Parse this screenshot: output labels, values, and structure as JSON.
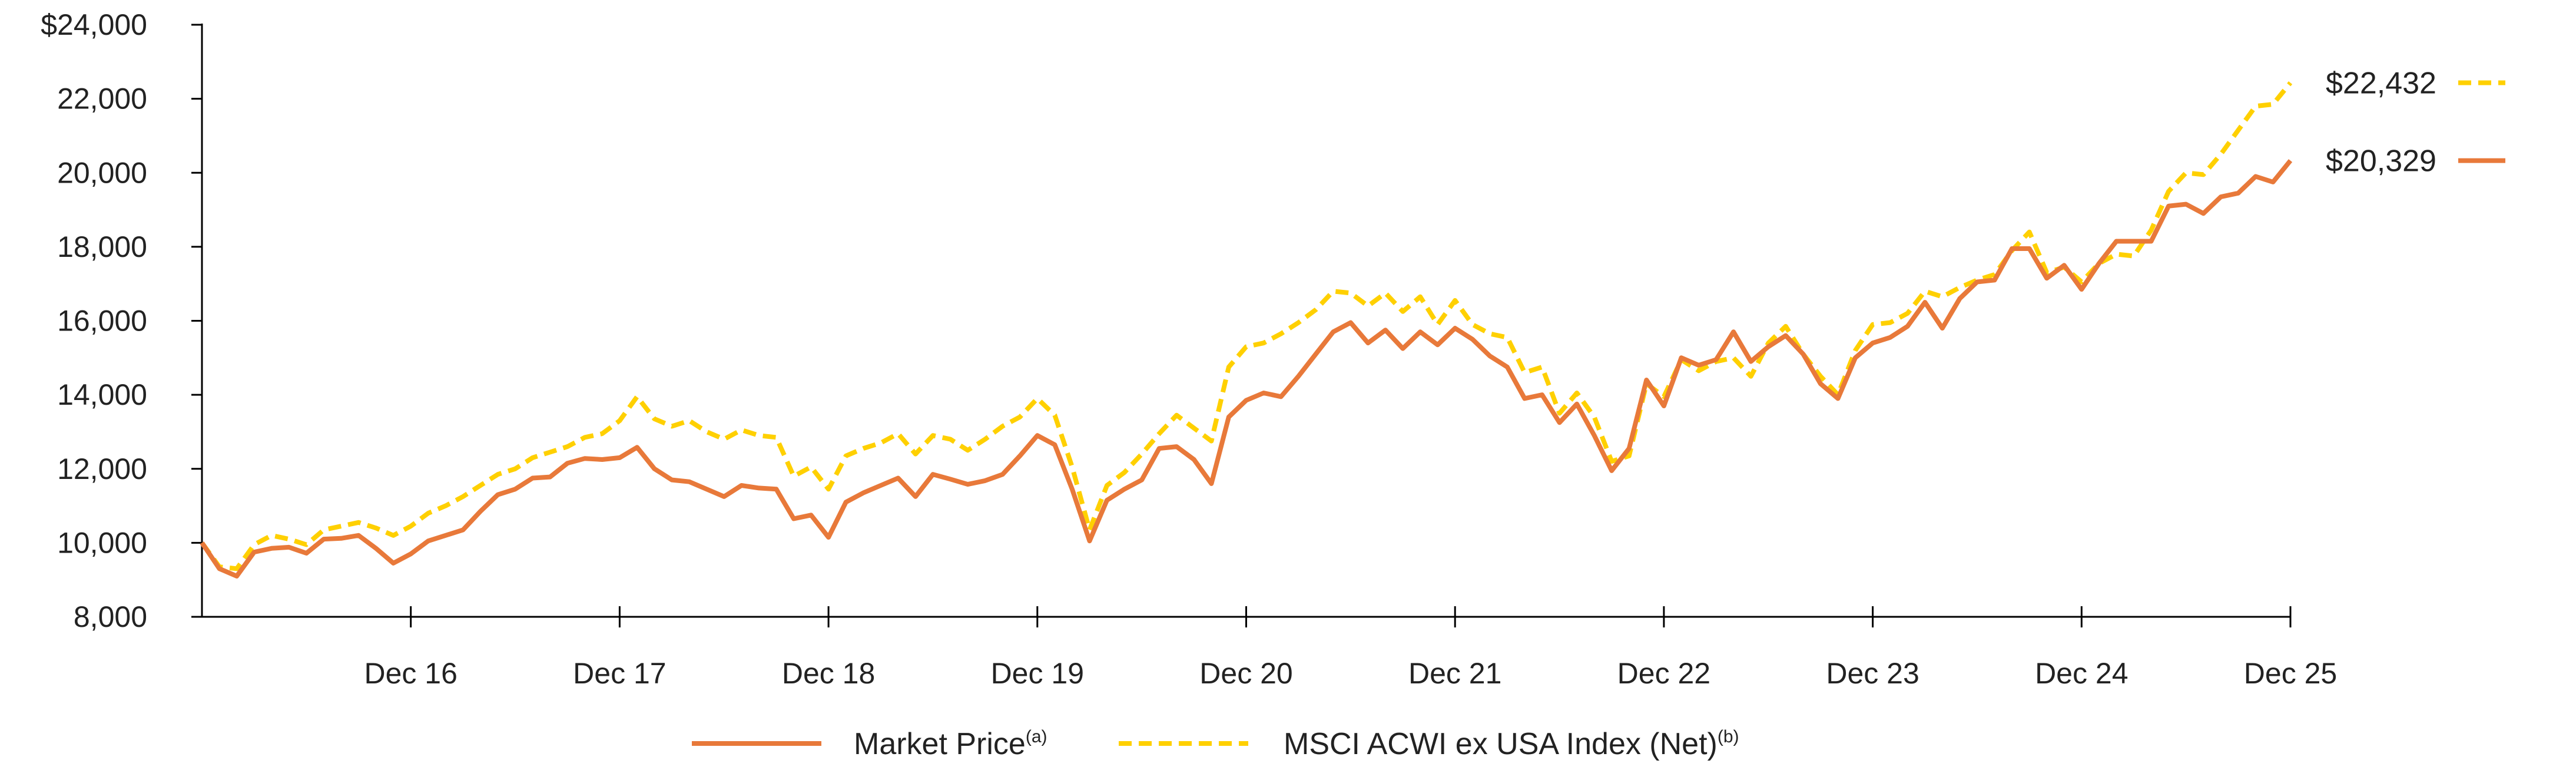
{
  "chart_data": {
    "type": "line",
    "title": "",
    "xlabel": "",
    "ylabel": "",
    "ylim": [
      8000,
      24000
    ],
    "y_ticks": [
      8000,
      10000,
      12000,
      14000,
      16000,
      18000,
      20000,
      22000,
      24000
    ],
    "y_tick_labels": [
      "8,000",
      "10,000",
      "12,000",
      "14,000",
      "16,000",
      "18,000",
      "20,000",
      "22,000",
      "$24,000"
    ],
    "x_range_months": [
      0,
      120
    ],
    "x_ticks": [
      {
        "month": 12,
        "label": "Dec 16"
      },
      {
        "month": 24,
        "label": "Dec 17"
      },
      {
        "month": 36,
        "label": "Dec 18"
      },
      {
        "month": 48,
        "label": "Dec 19"
      },
      {
        "month": 60,
        "label": "Dec 20"
      },
      {
        "month": 72,
        "label": "Dec 21"
      },
      {
        "month": 84,
        "label": "Dec 22"
      },
      {
        "month": 96,
        "label": "Dec 23"
      },
      {
        "month": 108,
        "label": "Dec 24"
      },
      {
        "month": 120,
        "label": "Dec 25"
      }
    ],
    "grid": false,
    "legend_position": "bottom",
    "series": [
      {
        "name": "Market Price",
        "superscript": "(a)",
        "color": "#E8793A",
        "style": "solid",
        "end_label": "$20,329",
        "points": [
          [
            0,
            10000
          ],
          [
            1,
            9300
          ],
          [
            2,
            9100
          ],
          [
            3,
            9750
          ],
          [
            4,
            9850
          ],
          [
            5,
            9880
          ],
          [
            6,
            9720
          ],
          [
            7,
            10100
          ],
          [
            8,
            10120
          ],
          [
            9,
            10200
          ],
          [
            10,
            9850
          ],
          [
            11,
            9450
          ],
          [
            12,
            9700
          ],
          [
            13,
            10050
          ],
          [
            14,
            10200
          ],
          [
            15,
            10350
          ],
          [
            16,
            10850
          ],
          [
            17,
            11300
          ],
          [
            18,
            11450
          ],
          [
            19,
            11750
          ],
          [
            20,
            11780
          ],
          [
            21,
            12150
          ],
          [
            22,
            12280
          ],
          [
            23,
            12250
          ],
          [
            24,
            12300
          ],
          [
            25,
            12580
          ],
          [
            26,
            12000
          ],
          [
            27,
            11700
          ],
          [
            28,
            11650
          ],
          [
            29,
            11450
          ],
          [
            30,
            11250
          ],
          [
            31,
            11550
          ],
          [
            32,
            11480
          ],
          [
            33,
            11450
          ],
          [
            34,
            10650
          ],
          [
            35,
            10750
          ],
          [
            36,
            10150
          ],
          [
            37,
            11100
          ],
          [
            38,
            11350
          ],
          [
            39,
            11550
          ],
          [
            40,
            11750
          ],
          [
            41,
            11250
          ],
          [
            42,
            11850
          ],
          [
            43,
            11720
          ],
          [
            44,
            11580
          ],
          [
            45,
            11680
          ],
          [
            46,
            11850
          ],
          [
            47,
            12350
          ],
          [
            48,
            12900
          ],
          [
            49,
            12650
          ],
          [
            50,
            11450
          ],
          [
            51,
            10050
          ],
          [
            52,
            11150
          ],
          [
            53,
            11450
          ],
          [
            54,
            11700
          ],
          [
            55,
            12550
          ],
          [
            56,
            12600
          ],
          [
            57,
            12250
          ],
          [
            58,
            11600
          ],
          [
            59,
            13400
          ],
          [
            60,
            13850
          ],
          [
            61,
            14050
          ],
          [
            62,
            13950
          ],
          [
            63,
            14500
          ],
          [
            64,
            15100
          ],
          [
            65,
            15700
          ],
          [
            66,
            15950
          ],
          [
            67,
            15400
          ],
          [
            68,
            15750
          ],
          [
            69,
            15250
          ],
          [
            70,
            15700
          ],
          [
            71,
            15350
          ],
          [
            72,
            15800
          ],
          [
            73,
            15500
          ],
          [
            74,
            15050
          ],
          [
            75,
            14750
          ],
          [
            76,
            13900
          ],
          [
            77,
            14000
          ],
          [
            78,
            13250
          ],
          [
            79,
            13750
          ],
          [
            80,
            12900
          ],
          [
            81,
            11950
          ],
          [
            82,
            12550
          ],
          [
            83,
            14400
          ],
          [
            84,
            13700
          ],
          [
            85,
            15000
          ],
          [
            86,
            14800
          ],
          [
            87,
            14950
          ],
          [
            88,
            15700
          ],
          [
            89,
            14900
          ],
          [
            90,
            15300
          ],
          [
            91,
            15600
          ],
          [
            92,
            15100
          ],
          [
            93,
            14300
          ],
          [
            94,
            13900
          ],
          [
            95,
            15000
          ],
          [
            96,
            15400
          ],
          [
            97,
            15550
          ],
          [
            98,
            15850
          ],
          [
            99,
            16500
          ],
          [
            100,
            15800
          ],
          [
            101,
            16600
          ],
          [
            102,
            17050
          ],
          [
            103,
            17100
          ],
          [
            104,
            17950
          ],
          [
            105,
            17950
          ],
          [
            106,
            17150
          ],
          [
            107,
            17500
          ],
          [
            108,
            16850
          ],
          [
            109,
            17550
          ],
          [
            110,
            18150
          ],
          [
            111,
            18150
          ],
          [
            112,
            18150
          ],
          [
            113,
            19100
          ],
          [
            114,
            19150
          ],
          [
            115,
            18900
          ],
          [
            116,
            19350
          ],
          [
            117,
            19450
          ],
          [
            118,
            19900
          ],
          [
            119,
            19750
          ],
          [
            120,
            20329
          ]
        ]
      },
      {
        "name": "MSCI ACWI ex USA Index (Net)",
        "superscript": "(b)",
        "color": "#FFD000",
        "style": "dashed",
        "end_label": "$22,432",
        "points": [
          [
            0,
            10000
          ],
          [
            1,
            9350
          ],
          [
            2,
            9300
          ],
          [
            3,
            9950
          ],
          [
            4,
            10200
          ],
          [
            5,
            10100
          ],
          [
            6,
            9950
          ],
          [
            7,
            10350
          ],
          [
            8,
            10450
          ],
          [
            9,
            10550
          ],
          [
            10,
            10400
          ],
          [
            11,
            10200
          ],
          [
            12,
            10450
          ],
          [
            13,
            10800
          ],
          [
            14,
            11000
          ],
          [
            15,
            11250
          ],
          [
            16,
            11550
          ],
          [
            17,
            11850
          ],
          [
            18,
            12000
          ],
          [
            19,
            12300
          ],
          [
            20,
            12450
          ],
          [
            21,
            12600
          ],
          [
            22,
            12850
          ],
          [
            23,
            12950
          ],
          [
            24,
            13300
          ],
          [
            25,
            13950
          ],
          [
            26,
            13350
          ],
          [
            27,
            13150
          ],
          [
            28,
            13300
          ],
          [
            29,
            13000
          ],
          [
            30,
            12800
          ],
          [
            31,
            13050
          ],
          [
            32,
            12900
          ],
          [
            33,
            12850
          ],
          [
            34,
            11800
          ],
          [
            35,
            12050
          ],
          [
            36,
            11450
          ],
          [
            37,
            12350
          ],
          [
            38,
            12550
          ],
          [
            39,
            12700
          ],
          [
            40,
            12950
          ],
          [
            41,
            12400
          ],
          [
            42,
            12900
          ],
          [
            43,
            12800
          ],
          [
            44,
            12500
          ],
          [
            45,
            12800
          ],
          [
            46,
            13150
          ],
          [
            47,
            13400
          ],
          [
            48,
            13900
          ],
          [
            49,
            13450
          ],
          [
            50,
            12050
          ],
          [
            51,
            10350
          ],
          [
            52,
            11550
          ],
          [
            53,
            11900
          ],
          [
            54,
            12400
          ],
          [
            55,
            12950
          ],
          [
            56,
            13450
          ],
          [
            57,
            13100
          ],
          [
            58,
            12750
          ],
          [
            59,
            14750
          ],
          [
            60,
            15300
          ],
          [
            61,
            15400
          ],
          [
            62,
            15650
          ],
          [
            63,
            15950
          ],
          [
            64,
            16300
          ],
          [
            65,
            16800
          ],
          [
            66,
            16750
          ],
          [
            67,
            16400
          ],
          [
            68,
            16750
          ],
          [
            69,
            16250
          ],
          [
            70,
            16650
          ],
          [
            71,
            15900
          ],
          [
            72,
            16550
          ],
          [
            73,
            15900
          ],
          [
            74,
            15650
          ],
          [
            75,
            15550
          ],
          [
            76,
            14600
          ],
          [
            77,
            14750
          ],
          [
            78,
            13500
          ],
          [
            79,
            14050
          ],
          [
            80,
            13400
          ],
          [
            81,
            12200
          ],
          [
            82,
            12350
          ],
          [
            83,
            14300
          ],
          [
            84,
            13950
          ],
          [
            85,
            14950
          ],
          [
            86,
            14650
          ],
          [
            87,
            14900
          ],
          [
            88,
            15000
          ],
          [
            89,
            14500
          ],
          [
            90,
            15400
          ],
          [
            91,
            15850
          ],
          [
            92,
            15100
          ],
          [
            93,
            14500
          ],
          [
            94,
            14000
          ],
          [
            95,
            15200
          ],
          [
            96,
            15900
          ],
          [
            97,
            15950
          ],
          [
            98,
            16200
          ],
          [
            99,
            16800
          ],
          [
            100,
            16650
          ],
          [
            101,
            16900
          ],
          [
            102,
            17100
          ],
          [
            103,
            17250
          ],
          [
            104,
            17900
          ],
          [
            105,
            18400
          ],
          [
            106,
            17300
          ],
          [
            107,
            17450
          ],
          [
            108,
            17050
          ],
          [
            109,
            17550
          ],
          [
            110,
            17800
          ],
          [
            111,
            17750
          ],
          [
            112,
            18450
          ],
          [
            113,
            19500
          ],
          [
            114,
            20000
          ],
          [
            115,
            19950
          ],
          [
            116,
            20500
          ],
          [
            117,
            21150
          ],
          [
            118,
            21800
          ],
          [
            119,
            21850
          ],
          [
            120,
            22432
          ]
        ]
      }
    ]
  }
}
